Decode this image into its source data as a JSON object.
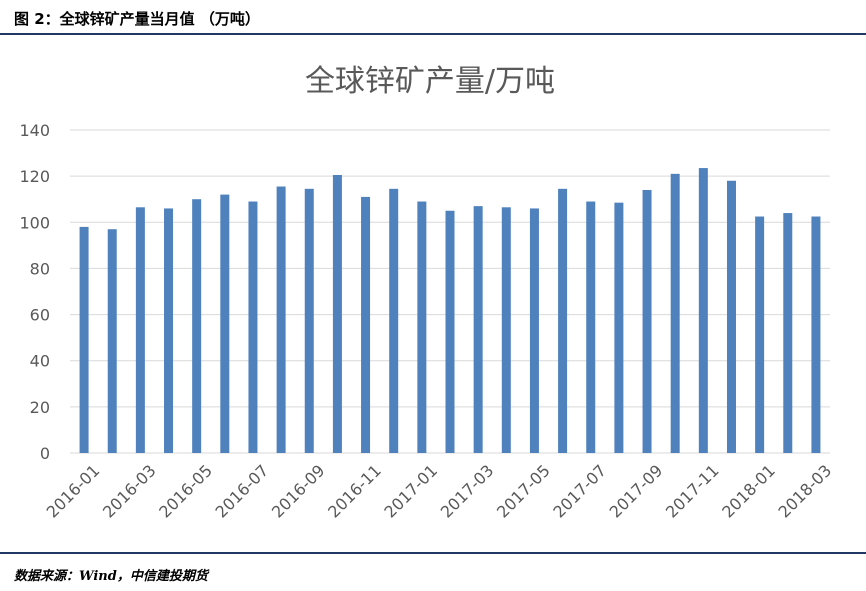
{
  "header": {
    "figure_label": "图 2：全球锌矿产量当月值 （万吨）"
  },
  "footer": {
    "source": "数据来源：Wind，中信建投期货"
  },
  "colors": {
    "bar": "#4f81bd",
    "grid": "#d9d9d9",
    "axis_text": "#595959",
    "title_text": "#595959",
    "rule": "#1f3864"
  },
  "chart_data": {
    "type": "bar",
    "title": "全球锌矿产量/万吨",
    "xlabel": "",
    "ylabel": "",
    "ylim": [
      0,
      140
    ],
    "yticks": [
      0,
      20,
      40,
      60,
      80,
      100,
      120,
      140
    ],
    "grid": true,
    "categories": [
      "2016-01",
      "2016-02",
      "2016-03",
      "2016-04",
      "2016-05",
      "2016-06",
      "2016-07",
      "2016-08",
      "2016-09",
      "2016-10",
      "2016-11",
      "2016-12",
      "2017-01",
      "2017-02",
      "2017-03",
      "2017-04",
      "2017-05",
      "2017-06",
      "2017-07",
      "2017-08",
      "2017-09",
      "2017-10",
      "2017-11",
      "2017-12",
      "2018-01",
      "2018-02",
      "2018-03"
    ],
    "xtick_labels": [
      "2016-01",
      "2016-03",
      "2016-05",
      "2016-07",
      "2016-09",
      "2016-11",
      "2017-01",
      "2017-03",
      "2017-05",
      "2017-07",
      "2017-09",
      "2017-11",
      "2018-01",
      "2018-03"
    ],
    "values": [
      98,
      97,
      106.5,
      106,
      110,
      112,
      109,
      115.5,
      114.5,
      120.5,
      111,
      114.5,
      109,
      105,
      107,
      106.5,
      106,
      114.5,
      109,
      108.5,
      114,
      121,
      123.5,
      118,
      102.5,
      104,
      102.5
    ]
  }
}
